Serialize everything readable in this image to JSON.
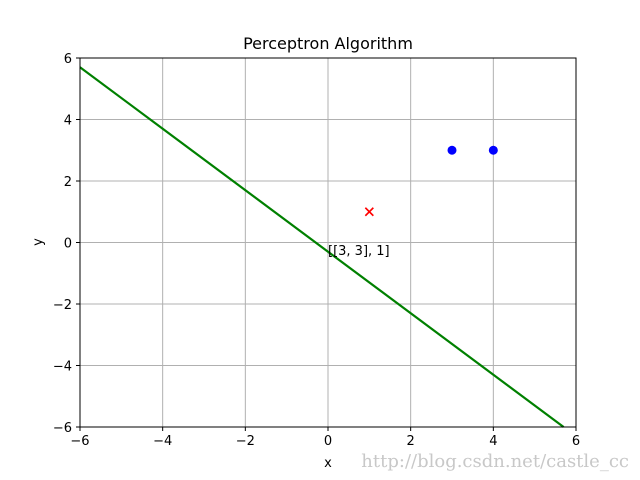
{
  "chart_data": {
    "type": "scatter",
    "title": "Perceptron Algorithm",
    "xlabel": "x",
    "ylabel": "y",
    "xlim": [
      -6,
      6
    ],
    "ylim": [
      -6,
      6
    ],
    "xticks": [
      -6,
      -4,
      -2,
      0,
      2,
      4,
      6
    ],
    "yticks": [
      -6,
      -4,
      -2,
      0,
      2,
      4,
      6
    ],
    "grid": true,
    "series": [
      {
        "marker": "circle",
        "color": "#0000ff",
        "points": [
          [
            3,
            3
          ],
          [
            4,
            3
          ]
        ]
      },
      {
        "marker": "x",
        "color": "#ff0000",
        "points": [
          [
            1,
            1
          ]
        ]
      }
    ],
    "line": {
      "color": "#008000",
      "points": [
        [
          -6,
          5.7
        ],
        [
          5.7,
          -6
        ]
      ]
    },
    "annotations": [
      {
        "text": "[[3, 3], 1]",
        "x": 0,
        "y": -0.25
      }
    ]
  },
  "watermark": "http://blog.csdn.net/castle_cc"
}
